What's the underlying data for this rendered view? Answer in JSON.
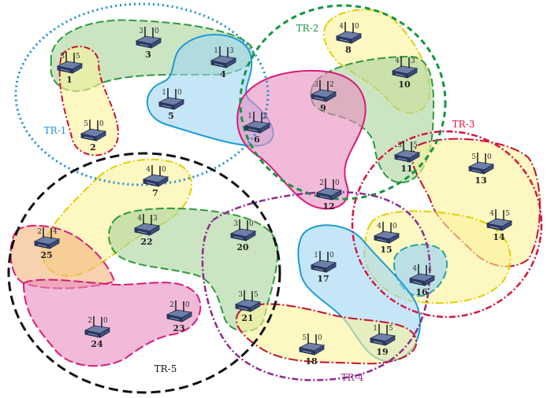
{
  "regions": [
    {
      "key": "TR-1",
      "label": "TR-1",
      "color": "#1b8fd1"
    },
    {
      "key": "TR-2",
      "label": "TR-2",
      "color": "#13963f"
    },
    {
      "key": "TR-3",
      "label": "TR-3",
      "color": "#d6163f"
    },
    {
      "key": "TR-4",
      "label": "TR-4",
      "color": "#8e2a8e"
    },
    {
      "key": "TR-5",
      "label": "TR-5",
      "color": "#111111"
    }
  ],
  "nodes": [
    {
      "id": "1",
      "p1": "3",
      "p2": "5"
    },
    {
      "id": "2",
      "p1": "5",
      "p2": "0"
    },
    {
      "id": "3",
      "p1": "3",
      "p2": "0"
    },
    {
      "id": "4",
      "p1": "1",
      "p2": "3"
    },
    {
      "id": "5",
      "p1": "1",
      "p2": "0"
    },
    {
      "id": "6",
      "p1": "1",
      "p2": "2"
    },
    {
      "id": "7",
      "p1": "4",
      "p2": "0"
    },
    {
      "id": "8",
      "p1": "4",
      "p2": "0"
    },
    {
      "id": "9",
      "p1": "3",
      "p2": "2"
    },
    {
      "id": "10",
      "p1": "4",
      "p2": "3"
    },
    {
      "id": "11",
      "p1": "3",
      "p2": "5"
    },
    {
      "id": "12",
      "p1": "2",
      "p2": "0"
    },
    {
      "id": "13",
      "p1": "5",
      "p2": "0"
    },
    {
      "id": "14",
      "p1": "4",
      "p2": "5"
    },
    {
      "id": "15",
      "p1": "4",
      "p2": "0"
    },
    {
      "id": "16",
      "p1": "4",
      "p2": "1"
    },
    {
      "id": "17",
      "p1": "1",
      "p2": "0"
    },
    {
      "id": "18",
      "p1": "5",
      "p2": "0"
    },
    {
      "id": "19",
      "p1": "1",
      "p2": "5"
    },
    {
      "id": "20",
      "p1": "3",
      "p2": "0"
    },
    {
      "id": "21",
      "p1": "3",
      "p2": "5"
    },
    {
      "id": "22",
      "p1": "4",
      "p2": "3"
    },
    {
      "id": "23",
      "p1": "2",
      "p2": "0"
    },
    {
      "id": "24",
      "p1": "2",
      "p2": "0"
    },
    {
      "id": "25",
      "p1": "2",
      "p2": "4"
    }
  ],
  "colors": {
    "green_fill": "#a9d39a",
    "yellow_fill": "#fbf29a",
    "blue_fill": "#9ed6f2",
    "pink_fill": "#ea8cbf",
    "orange_fill": "#f4b27a",
    "green_line": "#2f9a3f",
    "yellow_line": "#e0d000",
    "blue_line": "#1d9bd7",
    "pink_line": "#d81b7a",
    "red_line": "#c8102e",
    "teal_line": "#2aa39a"
  }
}
